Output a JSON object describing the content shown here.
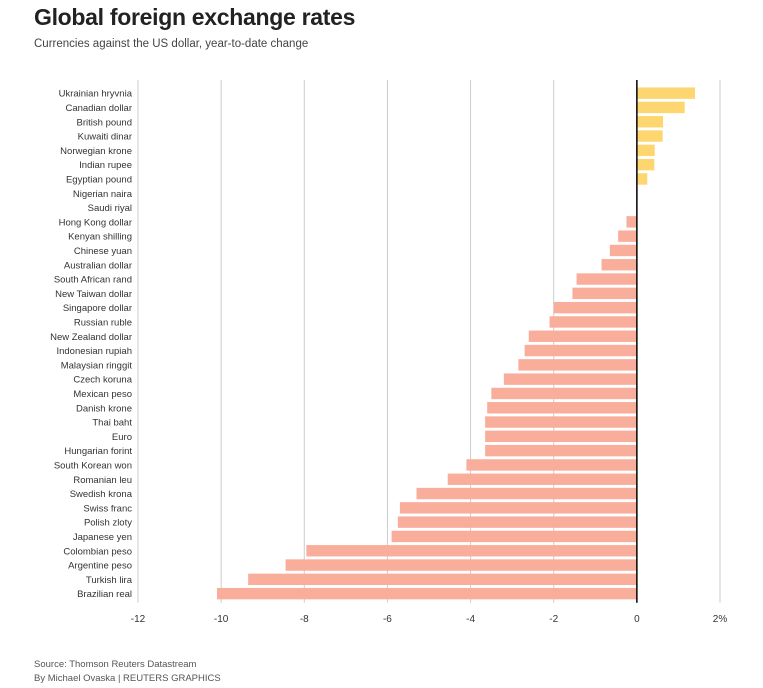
{
  "header": {
    "title": "Global foreign exchange rates",
    "subtitle": "Currencies against the US dollar, year-to-date change"
  },
  "footer": {
    "source": "Source: Thomson Reuters Datastream",
    "byline": "By Michael Ovaska | REUTERS GRAPHICS"
  },
  "colors": {
    "positive": "#fdd66f",
    "negative": "#f9ad9b",
    "zero_line": "#111111",
    "grid": "#cccccc"
  },
  "chart_data": {
    "type": "bar",
    "orientation": "horizontal",
    "title": "Global foreign exchange rates",
    "subtitle": "Currencies against the US dollar, year-to-date change",
    "xlabel": "",
    "ylabel": "",
    "xlim": [
      -12,
      2
    ],
    "xticks": [
      -12,
      -10,
      -8,
      -6,
      -4,
      -2,
      0,
      2
    ],
    "xtick_labels": [
      "-12",
      "-10",
      "-8",
      "-6",
      "-4",
      "-2",
      "0",
      "2%"
    ],
    "grid": true,
    "categories": [
      "Ukrainian hryvnia",
      "Canadian dollar",
      "British pound",
      "Kuwaiti dinar",
      "Norwegian krone",
      "Indian rupee",
      "Egyptian pound",
      "Nigerian naira",
      "Saudi riyal",
      "Hong Kong dollar",
      "Kenyan shilling",
      "Chinese yuan",
      "Australian dollar",
      "South African rand",
      "New Taiwan dollar",
      "Singapore dollar",
      "Russian ruble",
      "New Zealand dollar",
      "Indonesian rupiah",
      "Malaysian ringgit",
      "Czech koruna",
      "Mexican peso",
      "Danish krone",
      "Thai baht",
      "Euro",
      "Hungarian forint",
      "South Korean won",
      "Romanian leu",
      "Swedish krona",
      "Swiss franc",
      "Polish zloty",
      "Japanese yen",
      "Colombian peso",
      "Argentine peso",
      "Turkish lira",
      "Brazilian real"
    ],
    "values": [
      1.4,
      1.15,
      0.63,
      0.62,
      0.43,
      0.42,
      0.25,
      0.02,
      0.01,
      -0.25,
      -0.45,
      -0.65,
      -0.85,
      -1.45,
      -1.55,
      -2.0,
      -2.1,
      -2.6,
      -2.7,
      -2.85,
      -3.2,
      -3.5,
      -3.6,
      -3.65,
      -3.65,
      -3.65,
      -4.1,
      -4.55,
      -5.3,
      -5.7,
      -5.75,
      -5.9,
      -7.95,
      -8.45,
      -9.35,
      -10.1
    ]
  }
}
